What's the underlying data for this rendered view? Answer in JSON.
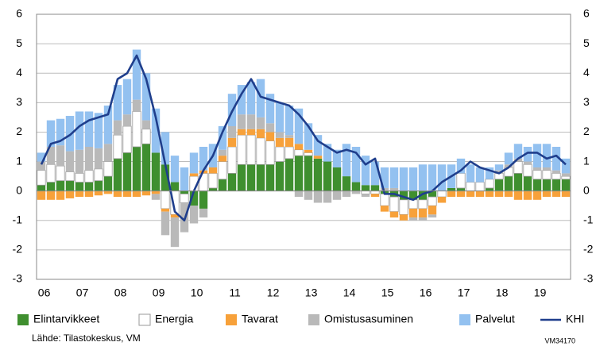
{
  "chart_data": {
    "type": "bar",
    "categories": [
      "06",
      null,
      null,
      null,
      "07",
      null,
      null,
      null,
      "08",
      null,
      null,
      null,
      "09",
      null,
      null,
      null,
      "10",
      null,
      null,
      null,
      "11",
      null,
      null,
      null,
      "12",
      null,
      null,
      null,
      "13",
      null,
      null,
      null,
      "14",
      null,
      null,
      null,
      "15",
      null,
      null,
      null,
      "16",
      null,
      null,
      null,
      "17",
      null,
      null,
      null,
      "18",
      null,
      null,
      null,
      "19",
      null,
      null,
      null
    ],
    "series": [
      {
        "name": "Elintarvikkeet",
        "color": "#3f8f2f",
        "values": [
          0.2,
          0.3,
          0.35,
          0.35,
          0.3,
          0.3,
          0.35,
          0.5,
          1.1,
          1.3,
          1.5,
          1.6,
          1.3,
          0.9,
          0.3,
          -0.1,
          -0.5,
          -0.6,
          0.1,
          0.4,
          0.6,
          0.9,
          0.9,
          0.9,
          0.9,
          1.0,
          1.1,
          1.2,
          1.2,
          1.1,
          1.0,
          0.8,
          0.5,
          0.3,
          0.2,
          0.2,
          -0.1,
          -0.2,
          -0.3,
          -0.3,
          -0.3,
          -0.2,
          0.0,
          0.1,
          0.1,
          0.0,
          0.0,
          0.1,
          0.4,
          0.5,
          0.6,
          0.5,
          0.4,
          0.4,
          0.4,
          0.4
        ]
      },
      {
        "name": "Energia",
        "color": "#ffffff",
        "values": [
          0.5,
          0.6,
          0.5,
          0.3,
          0.3,
          0.4,
          0.4,
          0.5,
          0.8,
          0.9,
          1.2,
          0.5,
          0.0,
          -0.6,
          -0.8,
          -0.3,
          0.5,
          0.6,
          0.5,
          0.6,
          0.9,
          1.0,
          1.0,
          0.9,
          0.8,
          0.5,
          0.4,
          0.2,
          0.1,
          0.0,
          0.0,
          0.0,
          0.0,
          0.0,
          -0.1,
          -0.1,
          -0.4,
          -0.5,
          -0.5,
          -0.3,
          -0.3,
          -0.3,
          -0.2,
          0.0,
          0.5,
          0.3,
          0.3,
          0.3,
          0.2,
          0.3,
          0.4,
          0.4,
          0.3,
          0.3,
          0.2,
          0.1
        ]
      },
      {
        "name": "Tavarat",
        "color": "#f7a13a",
        "values": [
          -0.3,
          -0.3,
          -0.3,
          -0.25,
          -0.2,
          -0.2,
          -0.15,
          -0.1,
          -0.2,
          -0.2,
          -0.2,
          -0.15,
          -0.1,
          -0.1,
          -0.1,
          0.0,
          0.1,
          0.1,
          0.2,
          0.2,
          0.3,
          0.2,
          0.2,
          0.3,
          0.3,
          0.3,
          0.3,
          0.2,
          0.1,
          0.1,
          0.0,
          0.0,
          0.0,
          0.0,
          0.0,
          -0.1,
          -0.2,
          -0.2,
          -0.2,
          -0.3,
          -0.3,
          -0.3,
          -0.2,
          -0.2,
          -0.2,
          -0.2,
          -0.2,
          -0.2,
          -0.2,
          -0.2,
          -0.3,
          -0.3,
          -0.3,
          -0.2,
          -0.2,
          -0.2
        ]
      },
      {
        "name": "Omistusasuminen",
        "color": "#b9b9b9",
        "values": [
          0.3,
          0.6,
          0.7,
          0.7,
          0.8,
          0.8,
          0.7,
          0.6,
          0.5,
          0.4,
          0.4,
          0.3,
          -0.2,
          -0.8,
          -1.0,
          -1.0,
          -0.6,
          -0.3,
          0.0,
          0.2,
          0.4,
          0.5,
          0.5,
          0.4,
          0.3,
          0.2,
          0.1,
          -0.2,
          -0.3,
          -0.4,
          -0.4,
          -0.3,
          -0.2,
          -0.1,
          -0.1,
          0.0,
          0.1,
          0.1,
          0.0,
          -0.1,
          -0.1,
          -0.1,
          0.0,
          0.0,
          0.0,
          0.0,
          0.0,
          0.0,
          0.1,
          0.1,
          0.1,
          0.1,
          0.1,
          0.1,
          0.1,
          0.1
        ]
      },
      {
        "name": "Palvelut",
        "color": "#93c1f0",
        "values": [
          0.3,
          0.9,
          0.9,
          1.2,
          1.3,
          1.2,
          1.2,
          1.3,
          1.2,
          1.2,
          1.7,
          1.6,
          1.5,
          1.1,
          0.9,
          0.8,
          0.7,
          0.8,
          0.8,
          0.8,
          1.1,
          1.0,
          1.1,
          1.3,
          1.0,
          1.0,
          1.0,
          1.2,
          0.9,
          0.7,
          0.6,
          0.6,
          1.1,
          1.2,
          1.0,
          0.8,
          0.7,
          0.7,
          0.8,
          0.8,
          0.9,
          0.9,
          0.9,
          0.8,
          0.5,
          0.6,
          0.5,
          0.4,
          0.2,
          0.4,
          0.5,
          0.5,
          0.8,
          0.8,
          0.8,
          0.5
        ]
      },
      {
        "name": "KHI",
        "color": "#1f3e8c",
        "type": "line",
        "values": [
          0.9,
          1.6,
          1.7,
          1.9,
          2.2,
          2.4,
          2.5,
          2.6,
          3.8,
          4.0,
          4.6,
          3.8,
          2.5,
          0.9,
          -0.7,
          -1.0,
          0.0,
          0.7,
          1.2,
          2.0,
          2.7,
          3.3,
          3.8,
          3.2,
          3.1,
          3.0,
          2.9,
          2.6,
          2.2,
          1.7,
          1.5,
          1.3,
          1.4,
          1.3,
          0.9,
          1.1,
          -0.1,
          -0.1,
          -0.2,
          -0.3,
          -0.1,
          0.0,
          0.3,
          0.5,
          0.7,
          1.0,
          0.8,
          0.7,
          0.6,
          0.8,
          1.1,
          1.3,
          1.3,
          1.1,
          1.2,
          0.9
        ]
      }
    ],
    "ylim": [
      -3,
      6
    ],
    "yticks": [
      -3,
      -2,
      -1,
      0,
      1,
      2,
      3,
      4,
      5,
      6
    ],
    "grid": true,
    "source": "Lähde: Tilastokeskus, VM",
    "code": "VM34170"
  }
}
